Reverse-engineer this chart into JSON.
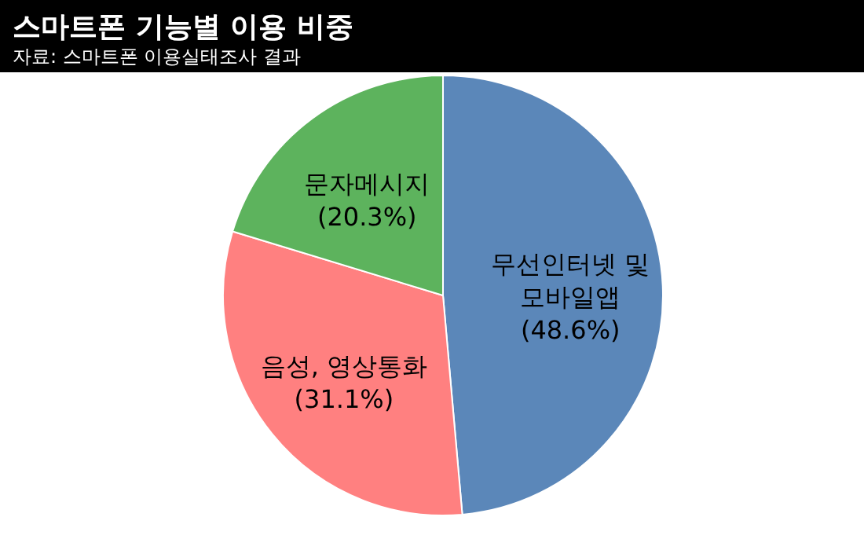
{
  "chart_data": {
    "type": "pie",
    "title": "스마트폰 기능별 이용 비중",
    "subtitle": "자료: 스마트폰 이용실태조사 결과",
    "categories": [
      "무선인터넷 및 모바일앱",
      "음성, 영상통화",
      "문자메시지"
    ],
    "values": [
      48.6,
      31.1,
      20.3
    ],
    "value_labels": [
      "(48.6%)",
      "(31.1%)",
      "(20.3%)"
    ],
    "colors": [
      "#5b87b9",
      "#ff8080",
      "#5db35d"
    ]
  }
}
